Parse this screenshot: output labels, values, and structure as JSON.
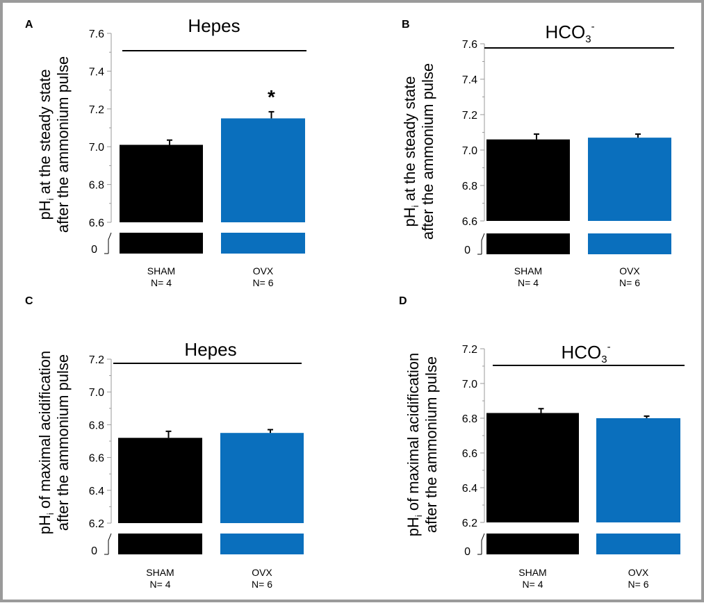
{
  "colors": {
    "sham": "#000000",
    "ovx": "#0a6fbd",
    "frame": "#9a9a9a"
  },
  "chart_data": [
    {
      "panel": "A",
      "type": "bar",
      "title_main": "Hepes",
      "title_sub": "",
      "ylabel_pre": "pH",
      "ylabel_sub": "i",
      "ylabel_rest": " at the steady state",
      "ylabel_line2": "after the ammonium pulse",
      "categories": [
        "SHAM",
        "OVX"
      ],
      "n_labels": [
        "N= 4",
        "N= 6"
      ],
      "values": [
        7.01,
        7.15
      ],
      "errors": [
        0.025,
        0.035
      ],
      "significance": [
        "",
        "*"
      ],
      "ylim": [
        6.6,
        7.6
      ],
      "yticks": [
        "6.6",
        "6.8",
        "7.0",
        "7.2",
        "7.4",
        "7.6"
      ],
      "break_label": "0"
    },
    {
      "panel": "B",
      "type": "bar",
      "title_main": "HCO",
      "title_sub": "3",
      "title_sup": "-",
      "ylabel_pre": "pH",
      "ylabel_sub": "i",
      "ylabel_rest": " at the steady state",
      "ylabel_line2": "after the ammonium pulse",
      "categories": [
        "SHAM",
        "OVX"
      ],
      "n_labels": [
        "N= 4",
        "N= 6"
      ],
      "values": [
        7.06,
        7.07
      ],
      "errors": [
        0.03,
        0.02
      ],
      "significance": [
        "",
        ""
      ],
      "ylim": [
        6.6,
        7.6
      ],
      "yticks": [
        "6.6",
        "6.8",
        "7.0",
        "7.2",
        "7.4",
        "7.6"
      ],
      "break_label": "0"
    },
    {
      "panel": "C",
      "type": "bar",
      "title_main": "Hepes",
      "title_sub": "",
      "ylabel_pre": "pH",
      "ylabel_sub": "i",
      "ylabel_rest": " of maximal acidification",
      "ylabel_line2": "after the ammonium pulse",
      "categories": [
        "SHAM",
        "OVX"
      ],
      "n_labels": [
        "N= 4",
        "N= 6"
      ],
      "values": [
        6.72,
        6.75
      ],
      "errors": [
        0.04,
        0.02
      ],
      "significance": [
        "",
        ""
      ],
      "ylim": [
        6.2,
        7.2
      ],
      "yticks": [
        "6.2",
        "6.4",
        "6.6",
        "6.8",
        "7.0",
        "7.2"
      ],
      "break_label": "0"
    },
    {
      "panel": "D",
      "type": "bar",
      "title_main": "HCO",
      "title_sub": "3",
      "title_sup": "-",
      "ylabel_pre": "pH",
      "ylabel_sub": "i",
      "ylabel_rest": " of maximal acidification",
      "ylabel_line2": "after the ammonium pulse",
      "categories": [
        "SHAM",
        "OVX"
      ],
      "n_labels": [
        "N= 4",
        "N= 6"
      ],
      "values": [
        6.83,
        6.8
      ],
      "errors": [
        0.025,
        0.012
      ],
      "significance": [
        "",
        ""
      ],
      "ylim": [
        6.2,
        7.2
      ],
      "yticks": [
        "6.2",
        "6.4",
        "6.6",
        "6.8",
        "7.0",
        "7.2"
      ],
      "break_label": "0"
    }
  ]
}
